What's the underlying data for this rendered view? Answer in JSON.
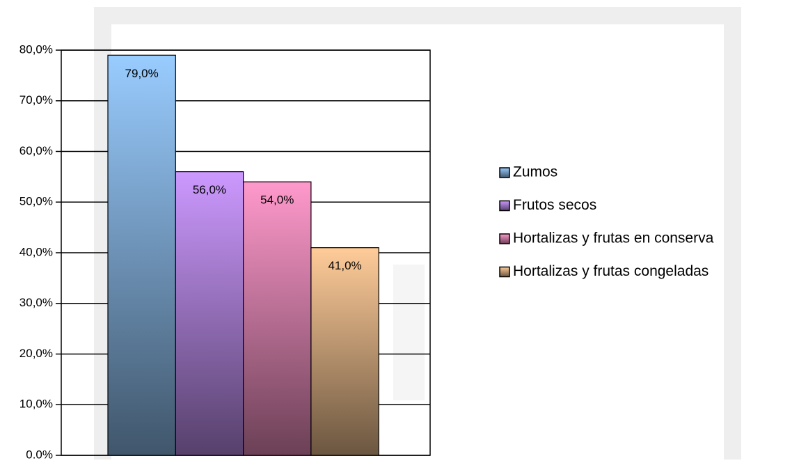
{
  "chart_data": {
    "type": "bar",
    "series": [
      {
        "name": "Zumos",
        "color": "#99ccff",
        "values": [
          79
        ],
        "value_labels": [
          "79,0%"
        ]
      },
      {
        "name": "Frutos secos",
        "color": "#cc99ff",
        "values": [
          56
        ],
        "value_labels": [
          "56,0%"
        ]
      },
      {
        "name": "Hortalizas y frutas en conserva",
        "color": "#ff99cc",
        "values": [
          54
        ],
        "value_labels": [
          "54,0%"
        ]
      },
      {
        "name": "Hortalizas y frutas congeladas",
        "color": "#ffcc99",
        "values": [
          41
        ],
        "value_labels": [
          "41,0%"
        ]
      }
    ],
    "ylim": [
      0,
      80
    ],
    "yticks": [
      {
        "value": 0,
        "label": "0.0%"
      },
      {
        "value": 10,
        "label": "10,0%"
      },
      {
        "value": 20,
        "label": "20,0%"
      },
      {
        "value": 30,
        "label": "30,0%"
      },
      {
        "value": 40,
        "label": "40,0%"
      },
      {
        "value": 50,
        "label": "50,0%"
      },
      {
        "value": 60,
        "label": "60,0%"
      },
      {
        "value": 70,
        "label": "70,0%"
      },
      {
        "value": 80,
        "label": "80,0%"
      }
    ],
    "grid": true,
    "legend": "right"
  }
}
